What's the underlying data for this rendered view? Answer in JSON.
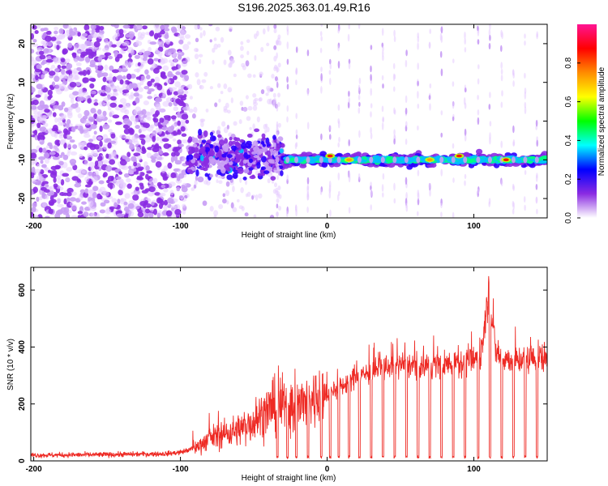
{
  "title": "S196.2025.363.01.49.R16",
  "colors": {
    "snr_line": "#ee2a24",
    "axes": "#000000",
    "background": "#ffffff"
  },
  "chart_data": [
    {
      "type": "heatmap",
      "name": "spectrogram",
      "xlabel": "Height of straight line (km)",
      "ylabel": "Frequency (Hz)",
      "xlim": [
        -202,
        150
      ],
      "ylim": [
        -25,
        25
      ],
      "xticks": [
        -200,
        -100,
        0,
        100
      ],
      "xtick_labels": [
        "-200",
        "-100",
        "0",
        "100"
      ],
      "yticks": [
        -20,
        -10,
        0,
        10,
        20
      ],
      "ytick_labels": [
        "-20",
        "-10",
        "0",
        "10",
        "20"
      ],
      "colorbar": {
        "label": "Normalized spectral amplitude",
        "range": [
          0,
          1
        ],
        "ticks": [
          0.0,
          0.2,
          0.4,
          0.6,
          0.8
        ],
        "tick_labels": [
          "0.0",
          "0.2",
          "0.4",
          "0.6",
          "0.8"
        ],
        "stops": [
          "#ffffff",
          "#8a2be2",
          "#0000ff",
          "#00ffff",
          "#00ff00",
          "#ffff00",
          "#ff8c00",
          "#ff0000",
          "#ff1493"
        ]
      },
      "regions": [
        {
          "x_range": [
            -202,
            -95
          ],
          "freq_range": [
            -25,
            25
          ],
          "description": "scattered noise"
        },
        {
          "x_range": [
            -95,
            -30
          ],
          "freq_center": -9,
          "freq_spread": 5
        },
        {
          "x_range": [
            -30,
            150
          ],
          "freq_center": -10,
          "freq_spread": 1
        }
      ],
      "tone_peaks": [
        {
          "x": 2,
          "freq": -9,
          "amplitude": 0.95
        },
        {
          "x": 15,
          "freq": -10,
          "amplitude": 0.92
        },
        {
          "x": 70,
          "freq": -10,
          "amplitude": 0.9
        },
        {
          "x": 90,
          "freq": -9,
          "amplitude": 0.95
        },
        {
          "x": 122,
          "freq": -10,
          "amplitude": 0.93
        }
      ]
    },
    {
      "type": "line",
      "name": "snr",
      "xlabel": "Height of straight line (km)",
      "ylabel": "SNR (10 * v/v)",
      "xlim": [
        -202,
        150
      ],
      "ylim": [
        0,
        680
      ],
      "xticks": [
        -200,
        -100,
        0,
        100
      ],
      "xtick_labels": [
        "-200",
        "-100",
        "0",
        "100"
      ],
      "yticks": [
        0,
        200,
        400,
        600
      ],
      "ytick_labels": [
        "0",
        "200",
        "400",
        "600"
      ],
      "series": [
        {
          "name": "SNR",
          "x": [
            -202,
            -150,
            -110,
            -100,
            -90,
            -80,
            -70,
            -60,
            -50,
            -40,
            -30,
            -20,
            -10,
            0,
            10,
            20,
            30,
            40,
            50,
            60,
            70,
            80,
            90,
            100,
            105,
            110,
            115,
            120,
            130,
            140,
            150
          ],
          "values": [
            20,
            22,
            25,
            30,
            45,
            80,
            95,
            110,
            140,
            180,
            200,
            190,
            215,
            240,
            260,
            300,
            310,
            330,
            340,
            335,
            335,
            340,
            345,
            350,
            370,
            600,
            380,
            360,
            355,
            360,
            365
          ]
        }
      ],
      "dropouts_x": [
        -34,
        -27,
        -21,
        -13,
        -4,
        2,
        8,
        15,
        22,
        30,
        38,
        46,
        54,
        62,
        70,
        78,
        86,
        94,
        103,
        111,
        119,
        127,
        135,
        143
      ]
    }
  ]
}
